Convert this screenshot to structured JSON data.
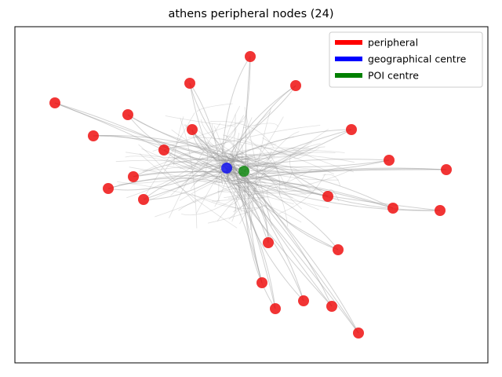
{
  "chart_data": {
    "type": "scatter",
    "title": "athens peripheral nodes (24)",
    "xlabel": "",
    "ylabel": "",
    "grid": false,
    "axis_ticks": false,
    "legend_position": "top-right",
    "legend": [
      {
        "label": "peripheral",
        "color": "#ff0000"
      },
      {
        "label": "geographical centre",
        "color": "#0000ff"
      },
      {
        "label": "POI centre",
        "color": "#008000"
      }
    ],
    "series": [
      {
        "name": "peripheral",
        "color": "#ee1111",
        "points": [
          [
            70,
            131
          ],
          [
            119,
            173
          ],
          [
            163,
            146
          ],
          [
            138,
            240
          ],
          [
            170,
            225
          ],
          [
            183,
            254
          ],
          [
            209,
            191
          ],
          [
            242,
            106
          ],
          [
            245,
            165
          ],
          [
            319,
            72
          ],
          [
            377,
            109
          ],
          [
            448,
            165
          ],
          [
            496,
            204
          ],
          [
            569,
            216
          ],
          [
            561,
            268
          ],
          [
            501,
            265
          ],
          [
            418,
            250
          ],
          [
            431,
            318
          ],
          [
            342,
            309
          ],
          [
            334,
            360
          ],
          [
            351,
            393
          ],
          [
            387,
            383
          ],
          [
            423,
            390
          ],
          [
            457,
            424
          ]
        ]
      },
      {
        "name": "geographical centre",
        "color": "#1111ee",
        "points": [
          [
            289,
            214
          ]
        ]
      },
      {
        "name": "POI centre",
        "color": "#118811",
        "points": [
          [
            311,
            218
          ]
        ]
      }
    ],
    "network_color": "#999999"
  }
}
